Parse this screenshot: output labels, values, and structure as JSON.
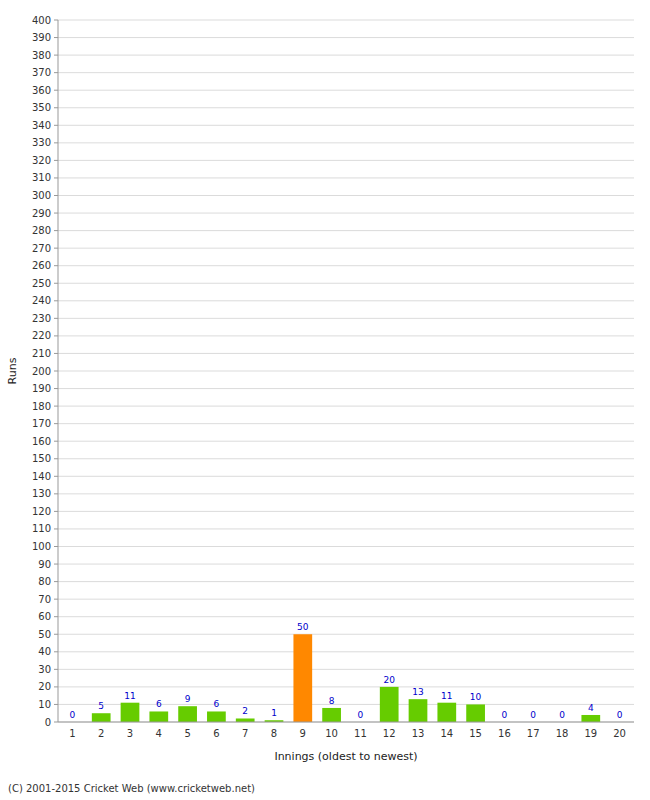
{
  "chart_data": {
    "type": "bar",
    "xlabel": "Innings (oldest to newest)",
    "ylabel": "Runs",
    "categories": [
      "1",
      "2",
      "3",
      "4",
      "5",
      "6",
      "7",
      "8",
      "9",
      "10",
      "11",
      "12",
      "13",
      "14",
      "15",
      "16",
      "17",
      "18",
      "19",
      "20"
    ],
    "values": [
      0,
      5,
      11,
      6,
      9,
      6,
      2,
      1,
      50,
      8,
      0,
      20,
      13,
      11,
      10,
      0,
      0,
      0,
      4,
      0
    ],
    "colors": [
      "#66cc00",
      "#66cc00",
      "#66cc00",
      "#66cc00",
      "#66cc00",
      "#66cc00",
      "#66cc00",
      "#66cc00",
      "#ff8800",
      "#66cc00",
      "#66cc00",
      "#66cc00",
      "#66cc00",
      "#66cc00",
      "#66cc00",
      "#66cc00",
      "#66cc00",
      "#66cc00",
      "#66cc00",
      "#66cc00"
    ],
    "ylim": [
      0,
      400
    ],
    "yticks": [
      0,
      10,
      20,
      30,
      40,
      50,
      60,
      70,
      80,
      90,
      100,
      110,
      120,
      130,
      140,
      150,
      160,
      170,
      180,
      190,
      200,
      210,
      220,
      230,
      240,
      250,
      260,
      270,
      280,
      290,
      300,
      310,
      320,
      330,
      340,
      350,
      360,
      370,
      380,
      390,
      400
    ],
    "grid": true,
    "data_labels": true,
    "annotations": [
      "(C) 2001-2015 Cricket Web (www.cricketweb.net)"
    ]
  }
}
